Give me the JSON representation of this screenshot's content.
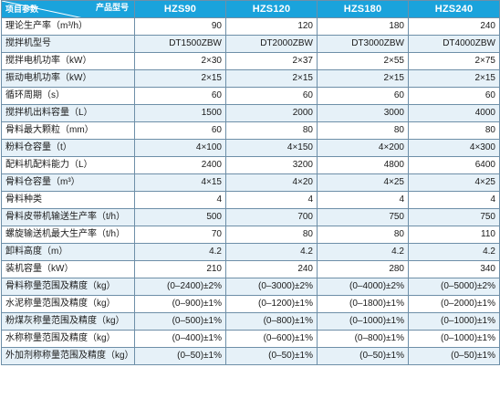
{
  "header": {
    "corner_top": "产品型号",
    "corner_bottom": "项目参数",
    "models": [
      "HZS90",
      "HZS120",
      "HZS180",
      "HZS240"
    ]
  },
  "rows": [
    {
      "label": "理论生产率（m³/h）",
      "values": [
        "90",
        "120",
        "180",
        "240"
      ]
    },
    {
      "label": "搅拌机型号",
      "values": [
        "DT1500ZBW",
        "DT2000ZBW",
        "DT3000ZBW",
        "DT4000ZBW"
      ]
    },
    {
      "label": "搅拌电机功率（kW）",
      "values": [
        "2×30",
        "2×37",
        "2×55",
        "2×75"
      ]
    },
    {
      "label": "振动电机功率（kW）",
      "values": [
        "2×15",
        "2×15",
        "2×15",
        "2×15"
      ]
    },
    {
      "label": "循环周期（s）",
      "values": [
        "60",
        "60",
        "60",
        "60"
      ]
    },
    {
      "label": "搅拌机出料容量（L）",
      "values": [
        "1500",
        "2000",
        "3000",
        "4000"
      ]
    },
    {
      "label": "骨料最大颗粒（mm）",
      "values": [
        "60",
        "80",
        "80",
        "80"
      ]
    },
    {
      "label": "粉料仓容量（t）",
      "values": [
        "4×100",
        "4×150",
        "4×200",
        "4×300"
      ]
    },
    {
      "label": "配料机配料能力（L）",
      "values": [
        "2400",
        "3200",
        "4800",
        "6400"
      ]
    },
    {
      "label": "骨料仓容量（m³）",
      "values": [
        "4×15",
        "4×20",
        "4×25",
        "4×25"
      ]
    },
    {
      "label": "骨料种类",
      "values": [
        "4",
        "4",
        "4",
        "4"
      ]
    },
    {
      "label": "骨料皮带机输送生产率（t/h）",
      "values": [
        "500",
        "700",
        "750",
        "750"
      ]
    },
    {
      "label": "螺旋输送机最大生产率（t/h）",
      "values": [
        "70",
        "80",
        "80",
        "110"
      ]
    },
    {
      "label": "卸料高度（m）",
      "values": [
        "4.2",
        "4.2",
        "4.2",
        "4.2"
      ]
    },
    {
      "label": "装机容量（kW）",
      "values": [
        "210",
        "240",
        "280",
        "340"
      ]
    },
    {
      "label": "骨料称量范围及精度（kg）",
      "values": [
        "(0–2400)±2%",
        "(0–3000)±2%",
        "(0–4000)±2%",
        "(0–5000)±2%"
      ]
    },
    {
      "label": "水泥称量范围及精度（kg）",
      "values": [
        "(0–900)±1%",
        "(0–1200)±1%",
        "(0–1800)±1%",
        "(0–2000)±1%"
      ]
    },
    {
      "label": "粉煤灰称量范围及精度（kg）",
      "values": [
        "(0–500)±1%",
        "(0–800)±1%",
        "(0–1000)±1%",
        "(0–1000)±1%"
      ]
    },
    {
      "label": "水称称量范围及精度（kg）",
      "values": [
        "(0–400)±1%",
        "(0–600)±1%",
        "(0–800)±1%",
        "(0–1000)±1%"
      ]
    },
    {
      "label": "外加剂称称量范围及精度（kg）",
      "values": [
        "(0–50)±1%",
        "(0–50)±1%",
        "(0–50)±1%",
        "(0–50)±1%"
      ]
    }
  ]
}
